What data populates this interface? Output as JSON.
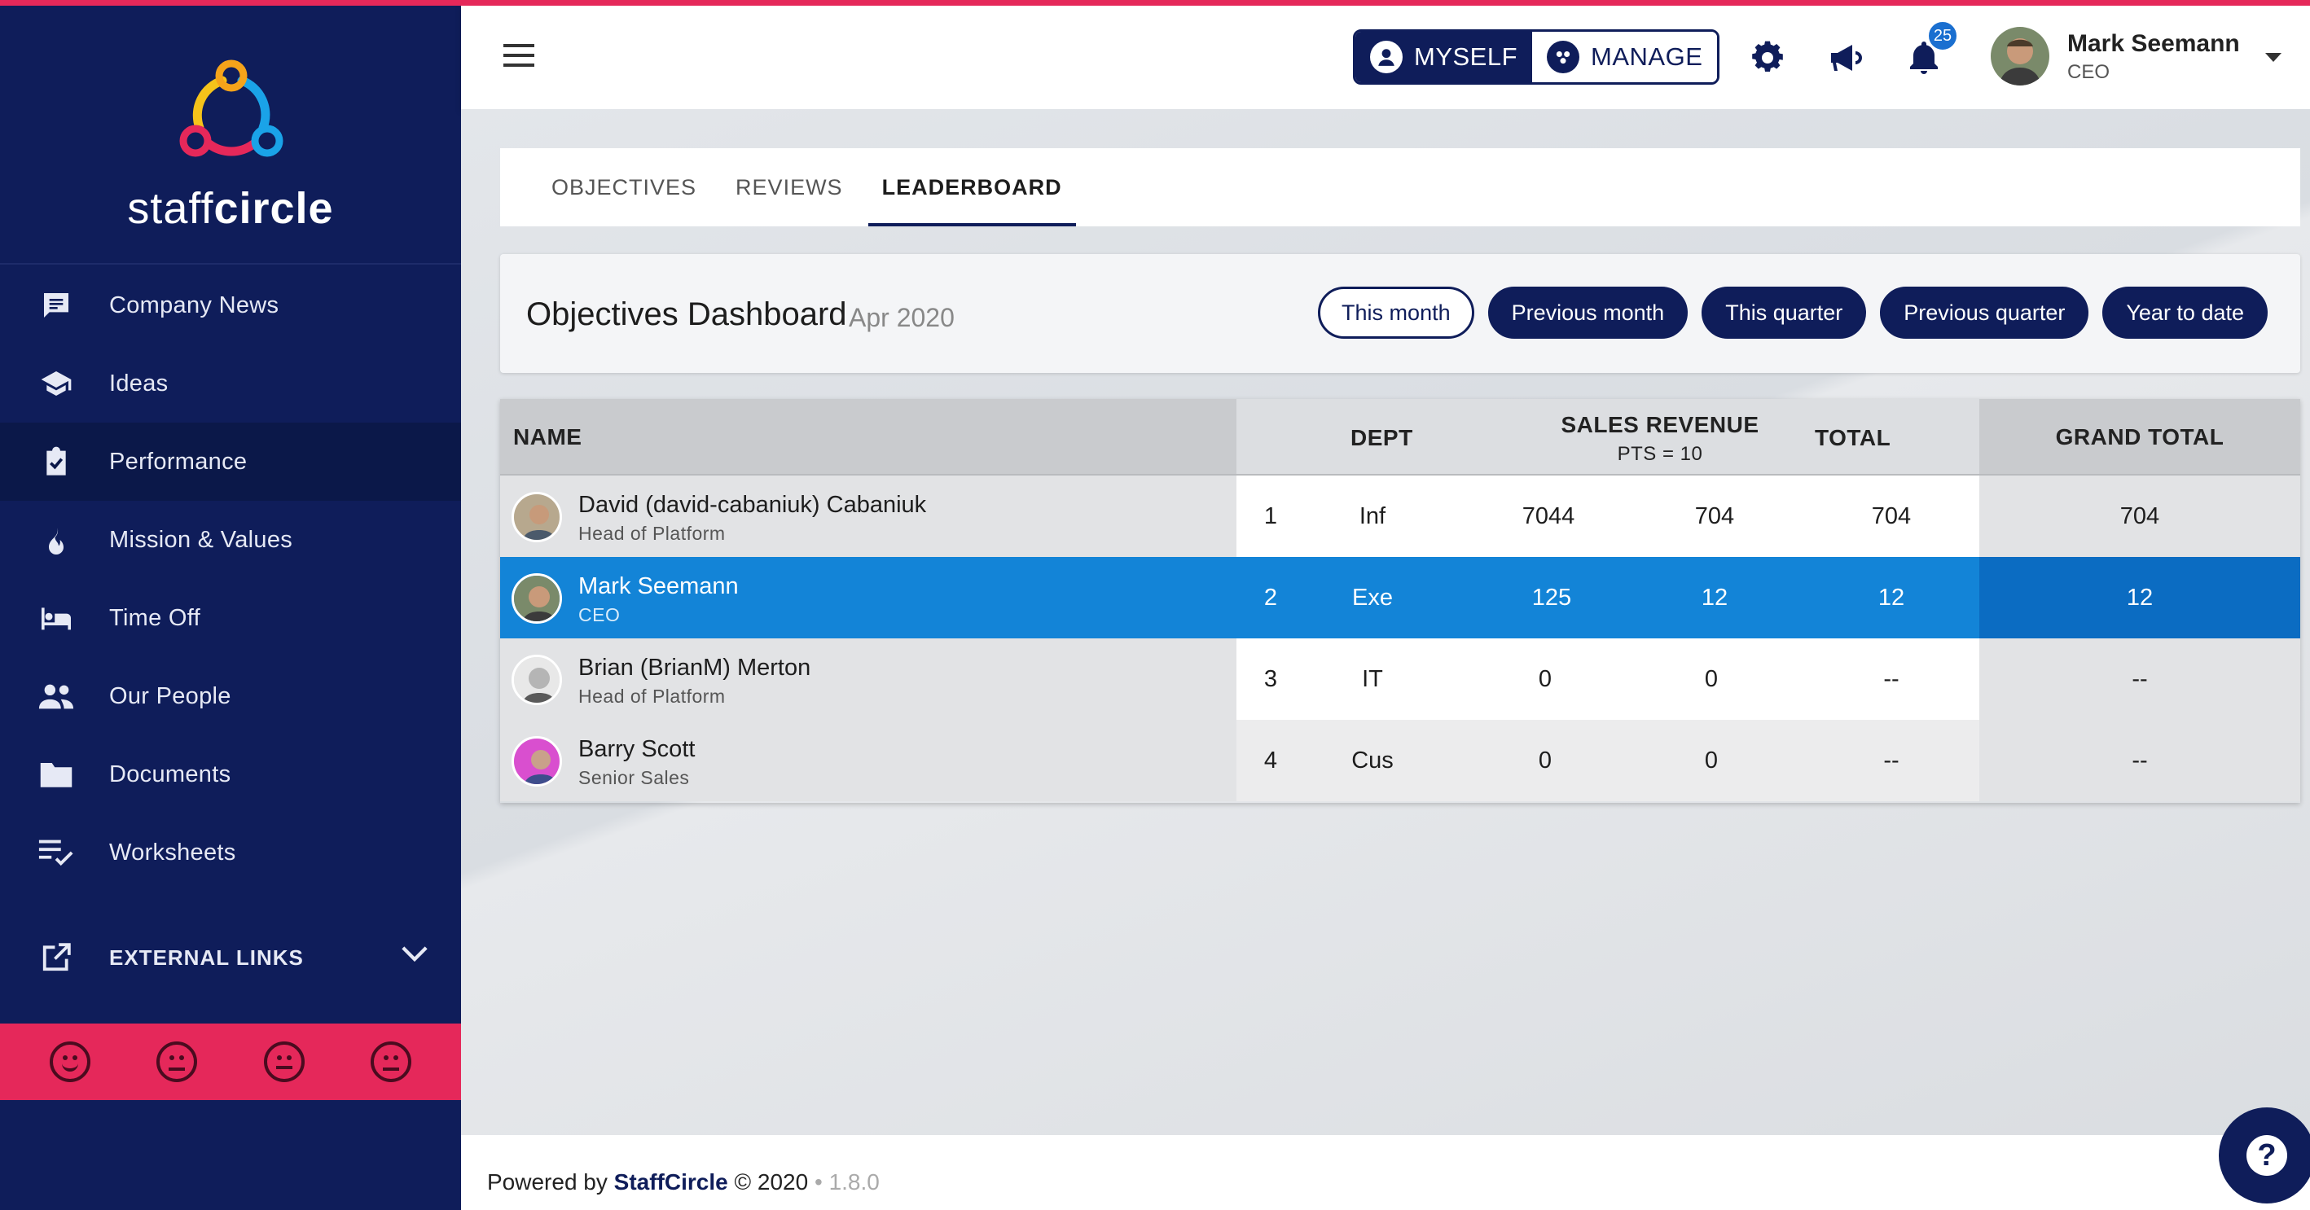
{
  "brand": {
    "name_light": "staff",
    "name_bold": "circle"
  },
  "sidebar": {
    "items": [
      {
        "label": "Company News",
        "icon": "chat-icon"
      },
      {
        "label": "Ideas",
        "icon": "graduation-cap-icon"
      },
      {
        "label": "Performance",
        "icon": "clipboard-check-icon",
        "active": true
      },
      {
        "label": "Mission & Values",
        "icon": "flame-icon"
      },
      {
        "label": "Time Off",
        "icon": "bed-icon"
      },
      {
        "label": "Our People",
        "icon": "people-icon"
      },
      {
        "label": "Documents",
        "icon": "folder-icon"
      },
      {
        "label": "Worksheets",
        "icon": "checklist-icon"
      }
    ],
    "external_links": "EXTERNAL LINKS"
  },
  "header": {
    "myself": "MYSELF",
    "manage": "MANAGE",
    "notifications": "25",
    "user_name": "Mark Seemann",
    "user_role": "CEO"
  },
  "tabs": [
    "OBJECTIVES",
    "REVIEWS",
    "LEADERBOARD"
  ],
  "dashboard": {
    "title": "Objectives Dashboard",
    "period": "Apr 2020",
    "filters": [
      "This month",
      "Previous month",
      "This quarter",
      "Previous quarter",
      "Year to date"
    ]
  },
  "table": {
    "headers": {
      "name": "NAME",
      "dept": "DEPT",
      "sales": "SALES REVENUE",
      "pts": "PTS = 10",
      "total": "TOTAL",
      "grand_total": "GRAND TOTAL"
    },
    "rows": [
      {
        "name": "David (david-cabaniuk) Cabaniuk",
        "role": "Head of Platform",
        "rank": "1",
        "dept": "Inf",
        "sales": "7044",
        "pts": "704",
        "total": "704",
        "grand_total": "704"
      },
      {
        "name": "Mark Seemann",
        "role": "CEO",
        "rank": "2",
        "dept": "Exe",
        "sales": "125",
        "pts": "12",
        "total": "12",
        "grand_total": "12"
      },
      {
        "name": "Brian (BrianM) Merton",
        "role": "Head of Platform",
        "rank": "3",
        "dept": "IT",
        "sales": "0",
        "pts": "0",
        "total": "--",
        "grand_total": "--"
      },
      {
        "name": "Barry Scott",
        "role": "Senior Sales",
        "rank": "4",
        "dept": "Cus",
        "sales": "0",
        "pts": "0",
        "total": "--",
        "grand_total": "--"
      }
    ]
  },
  "footer": {
    "prefix": "Powered by",
    "brand": "StaffCircle",
    "copyright": "© 2020",
    "sep": "•",
    "version": "1.8.0"
  },
  "colors": {
    "navy": "#0f1d5a",
    "accent": "#e5285a",
    "highlight": "#1384d7"
  }
}
